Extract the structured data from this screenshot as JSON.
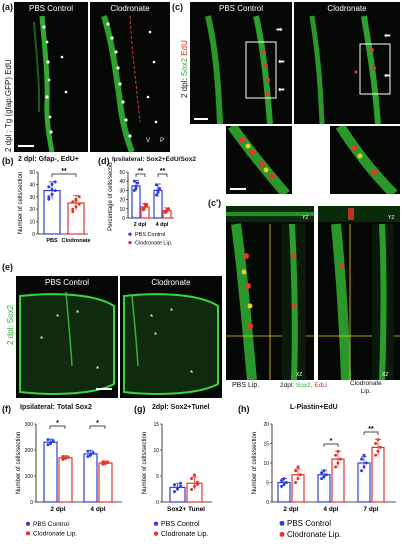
{
  "panels": {
    "a": {
      "letter": "(a)",
      "left_title": "PBS Control",
      "right_title": "Clodronate",
      "side_label": "2 dpl ; Tg (gfap:GFP) EdU",
      "corner_labels": [
        "V",
        "P"
      ]
    },
    "b": {
      "letter": "(b)",
      "title": "2 dpl: Gfap-, EdU+",
      "sig": "**",
      "ylabel": "Number of cells/section",
      "xlabels": [
        "PBS",
        "Clodronate"
      ]
    },
    "c": {
      "letter": "(c)",
      "left_title": "PBS Control",
      "right_title": "Clodronate",
      "side_label_1": "2 dpl:",
      "side_label_2": "Sox2",
      "side_label_3": "EdU"
    },
    "c_prime": {
      "letter": "(c')",
      "axis_yz": "YZ",
      "axis_xz": "XZ",
      "bottom_left": "PBS Lip.",
      "bottom_mid_1": "2dpl:",
      "bottom_mid_2": "Sox2,",
      "bottom_mid_3": "EdU",
      "bottom_right_1": "Clodronate",
      "bottom_right_2": "Lip."
    },
    "d": {
      "letter": "(d)",
      "title": "Ipsilateral: Sox2+EdU/Sox2",
      "ylabel": "Percentage of cells/section",
      "sig1": "**",
      "sig2": "**",
      "xlabels": [
        "2 dpl",
        "4 dpl"
      ],
      "legend": [
        "PBS Control",
        "Clodronate Lip."
      ]
    },
    "e": {
      "letter": "(e)",
      "left_title": "PBS Control",
      "right_title": "Clodronate",
      "side_label": "2 dpl: Sox2"
    },
    "f": {
      "letter": "(f)",
      "title": "Ipsilateral: Total Sox2",
      "ylabel": "Number of cells/section",
      "sig1": "*",
      "sig2": "*",
      "xlabels": [
        "2 dpl",
        "4 dpl"
      ],
      "legend": [
        "PBS Control",
        "Clodronate Lip."
      ]
    },
    "g": {
      "letter": "(g)",
      "title": "2dpl: Sox2+Tunel",
      "ylabel": "Number of cells/section",
      "xlabel": "Sox2+ Tunel",
      "legend": [
        "PBS Control",
        "Clodronate Lip."
      ]
    },
    "h": {
      "letter": "(h)",
      "title": "L-Plastin+EdU",
      "ylabel": "Number of cells/section",
      "sig1": "*",
      "sig2": "**",
      "xlabels": [
        "2 dpl",
        "4 dpl",
        "7 dpl"
      ],
      "legend": [
        "PBS Control",
        "Clodronate Lip."
      ]
    }
  },
  "colors": {
    "pbs": "#2f3fd9",
    "clodronate": "#e0362c",
    "green": "#3bd43b",
    "red": "#e23a2a"
  },
  "chart_data": [
    {
      "id": "b",
      "type": "bar",
      "title": "2 dpl: Gfap-, EdU+",
      "ylabel": "Number of cells/section",
      "categories": [
        "PBS",
        "Clodronate"
      ],
      "values": [
        35,
        25
      ],
      "errors": [
        7,
        6
      ],
      "ylim": [
        0,
        50
      ],
      "yticks": [
        0,
        10,
        20,
        30,
        40,
        50
      ],
      "points": [
        [
          28,
          32,
          35,
          38,
          40,
          42,
          30,
          36
        ],
        [
          18,
          22,
          24,
          26,
          28,
          30,
          20,
          27
        ]
      ]
    },
    {
      "id": "d",
      "type": "bar",
      "title": "Ipsilateral: Sox2+EdU/Sox2",
      "ylabel": "Percentage of cells/section",
      "categories": [
        "2 dpl",
        "4 dpl"
      ],
      "series": [
        {
          "name": "PBS Control",
          "values": [
            35,
            30
          ],
          "errors": [
            6,
            7
          ],
          "points": [
            [
              30,
              34,
              38,
              40,
              32
            ],
            [
              25,
              28,
              32,
              36,
              30
            ]
          ]
        },
        {
          "name": "Clodronate Lip.",
          "values": [
            12,
            8
          ],
          "errors": [
            4,
            3
          ],
          "points": [
            [
              9,
              12,
              14,
              10,
              15
            ],
            [
              6,
              8,
              10,
              7,
              9
            ]
          ]
        }
      ],
      "ylim": [
        0,
        50
      ],
      "yticks": [
        0,
        10,
        20,
        30,
        40,
        50
      ]
    },
    {
      "id": "f",
      "type": "bar",
      "title": "Ipsilateral: Total Sox2",
      "ylabel": "Number of cells/section",
      "categories": [
        "2 dpl",
        "4 dpl"
      ],
      "series": [
        {
          "name": "PBS Control",
          "values": [
            230,
            185
          ],
          "errors": [
            12,
            14
          ],
          "points": [
            [
              220,
              228,
              235,
              240,
              225,
              232
            ],
            [
              175,
              182,
              190,
              195,
              180,
              188
            ]
          ]
        },
        {
          "name": "Clodronate Lip.",
          "values": [
            170,
            150
          ],
          "errors": [
            8,
            8
          ],
          "points": [
            [
              164,
              168,
              172,
              175,
              170
            ],
            [
              145,
              148,
              152,
              155,
              150
            ]
          ]
        }
      ],
      "ylim": [
        0,
        300
      ],
      "yticks": [
        0,
        100,
        200,
        300
      ]
    },
    {
      "id": "g",
      "type": "bar",
      "title": "2dpl: Sox2+Tunel",
      "ylabel": "Number of cells/section",
      "categories": [
        "Sox2+ Tunel"
      ],
      "series": [
        {
          "name": "PBS Control",
          "values": [
            2.8
          ],
          "errors": [
            0.7
          ],
          "points": [
            [
              2.0,
              2.5,
              3.0,
              3.3,
              2.7,
              3.6
            ]
          ]
        },
        {
          "name": "Clodronate Lip.",
          "values": [
            3.6
          ],
          "errors": [
            1.2
          ],
          "points": [
            [
              2.4,
              3.0,
              3.8,
              4.5,
              5.2,
              3.4
            ]
          ]
        }
      ],
      "ylim": [
        0,
        15
      ],
      "yticks": [
        0,
        5,
        10,
        15
      ]
    },
    {
      "id": "h",
      "type": "bar",
      "title": "L-Plastin+EdU",
      "ylabel": "Number of cells/section",
      "categories": [
        "2 dpl",
        "4 dpl",
        "7 dpl"
      ],
      "series": [
        {
          "name": "PBS Control",
          "values": [
            5,
            7,
            10
          ],
          "errors": [
            1,
            1.2,
            1.6
          ],
          "points": [
            [
              4,
              4.5,
              5,
              5.5,
              6
            ],
            [
              6,
              6.5,
              7,
              7.5,
              8
            ],
            [
              8,
              9,
              10,
              11,
              12
            ]
          ]
        },
        {
          "name": "Clodronate Lip.",
          "values": [
            7,
            11,
            14
          ],
          "errors": [
            1.5,
            2,
            2
          ],
          "points": [
            [
              5,
              6,
              7,
              8,
              9
            ],
            [
              9,
              10,
              11,
              12,
              13
            ],
            [
              12,
              13,
              14,
              15,
              16
            ]
          ]
        }
      ],
      "ylim": [
        0,
        20
      ],
      "yticks": [
        0,
        5,
        10,
        15,
        20
      ]
    }
  ]
}
